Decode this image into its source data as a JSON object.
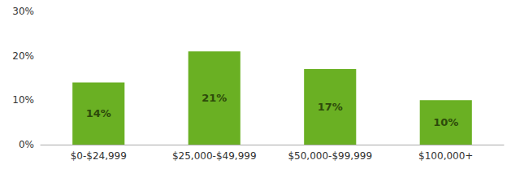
{
  "chart_data": {
    "type": "bar",
    "categories": [
      "$0-$24,999",
      "$25,000-$49,999",
      "$50,000-$99,999",
      "$100,000+"
    ],
    "values": [
      14,
      21,
      17,
      10
    ],
    "value_labels": [
      "14%",
      "21%",
      "17%",
      "10%"
    ],
    "color": "#6ab023",
    "ylim": [
      0,
      30
    ],
    "yticks": [
      {
        "value": 0,
        "label": "0%"
      },
      {
        "value": 10,
        "label": "10%"
      },
      {
        "value": 20,
        "label": "20%"
      },
      {
        "value": 30,
        "label": "30%"
      }
    ],
    "grid": false,
    "data_labels": true
  }
}
